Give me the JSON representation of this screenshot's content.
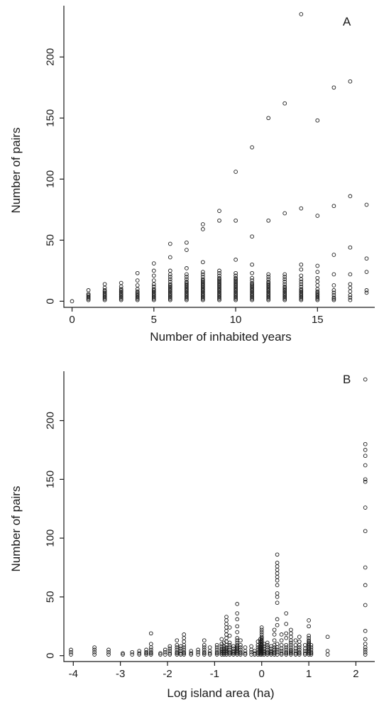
{
  "chart_data": [
    {
      "type": "scatter",
      "panel_label": "A",
      "xlabel": "Number of inhabited years",
      "ylabel": "Number of pairs",
      "xlim": [
        -0.5,
        18.5
      ],
      "ylim": [
        -5,
        242
      ],
      "xticks": [
        0,
        5,
        10,
        15
      ],
      "yticks": [
        0,
        50,
        100,
        150,
        200
      ],
      "grid": false,
      "legend": "none",
      "columns": [
        {
          "x": 0,
          "ys": [
            0
          ]
        },
        {
          "x": 1,
          "ys": [
            1,
            2,
            3,
            4,
            5,
            6,
            9
          ]
        },
        {
          "x": 2,
          "ys": [
            1,
            2,
            3,
            4,
            5,
            6,
            7,
            8,
            9,
            11,
            14
          ]
        },
        {
          "x": 3,
          "ys": [
            1,
            2,
            3,
            4,
            5,
            6,
            7,
            8,
            9,
            10,
            12,
            15
          ]
        },
        {
          "x": 4,
          "ys": [
            1,
            2,
            3,
            4,
            5,
            6,
            7,
            8,
            10,
            13,
            17,
            23
          ]
        },
        {
          "x": 5,
          "ys": [
            1,
            2,
            3,
            4,
            5,
            6,
            7,
            8,
            9,
            10,
            12,
            14,
            17,
            21,
            25,
            31
          ]
        },
        {
          "x": 6,
          "ys": [
            1,
            2,
            3,
            4,
            5,
            6,
            7,
            8,
            9,
            10,
            11,
            12,
            13,
            14,
            16,
            18,
            20,
            22,
            25,
            36,
            47
          ]
        },
        {
          "x": 7,
          "ys": [
            1,
            2,
            3,
            4,
            5,
            6,
            7,
            8,
            9,
            10,
            11,
            12,
            13,
            14,
            15,
            16,
            18,
            20,
            22,
            27,
            42,
            48
          ]
        },
        {
          "x": 8,
          "ys": [
            1,
            2,
            3,
            4,
            5,
            6,
            7,
            8,
            9,
            10,
            11,
            12,
            13,
            14,
            15,
            16,
            17,
            18,
            20,
            22,
            24,
            32,
            59,
            63
          ]
        },
        {
          "x": 9,
          "ys": [
            1,
            2,
            3,
            4,
            5,
            6,
            7,
            8,
            9,
            10,
            11,
            12,
            13,
            14,
            15,
            16,
            17,
            18,
            19,
            21,
            23,
            25,
            66,
            74
          ]
        },
        {
          "x": 10,
          "ys": [
            1,
            2,
            3,
            4,
            5,
            6,
            7,
            8,
            9,
            10,
            11,
            12,
            13,
            14,
            15,
            16,
            17,
            18,
            19,
            21,
            23,
            34,
            66,
            106
          ]
        },
        {
          "x": 11,
          "ys": [
            1,
            2,
            3,
            4,
            5,
            6,
            7,
            8,
            9,
            10,
            11,
            12,
            13,
            14,
            15,
            17,
            19,
            23,
            30,
            53,
            126
          ]
        },
        {
          "x": 12,
          "ys": [
            1,
            2,
            3,
            4,
            5,
            6,
            7,
            8,
            9,
            10,
            11,
            12,
            13,
            14,
            15,
            16,
            18,
            20,
            22,
            66,
            150
          ]
        },
        {
          "x": 13,
          "ys": [
            1,
            2,
            3,
            4,
            5,
            6,
            7,
            8,
            9,
            10,
            11,
            12,
            14,
            16,
            18,
            20,
            22,
            72,
            162
          ]
        },
        {
          "x": 14,
          "ys": [
            1,
            2,
            3,
            4,
            5,
            6,
            7,
            8,
            9,
            10,
            12,
            14,
            16,
            18,
            21,
            26,
            30,
            76,
            235
          ]
        },
        {
          "x": 15,
          "ys": [
            1,
            2,
            3,
            4,
            5,
            6,
            7,
            8,
            10,
            13,
            16,
            19,
            24,
            29,
            70,
            148
          ]
        },
        {
          "x": 16,
          "ys": [
            1,
            2,
            3,
            5,
            7,
            9,
            13,
            22,
            38,
            78,
            175
          ]
        },
        {
          "x": 17,
          "ys": [
            1,
            3,
            5,
            8,
            11,
            14,
            22,
            44,
            86,
            180
          ]
        },
        {
          "x": 18,
          "ys": [
            7,
            9,
            24,
            35,
            79
          ]
        }
      ]
    },
    {
      "type": "scatter",
      "panel_label": "B",
      "xlabel": "Log island area (ha)",
      "ylabel": "Number of pairs",
      "xlim": [
        -4.2,
        2.4
      ],
      "ylim": [
        -5,
        242
      ],
      "xticks": [
        -4,
        -3,
        -2,
        -1,
        0,
        1,
        2
      ],
      "yticks": [
        0,
        50,
        100,
        150,
        200
      ],
      "grid": false,
      "legend": "none",
      "columns": [
        {
          "x": -4.05,
          "ys": [
            1,
            3,
            5
          ]
        },
        {
          "x": -3.55,
          "ys": [
            1,
            3,
            5,
            7
          ]
        },
        {
          "x": -3.25,
          "ys": [
            1,
            3,
            5
          ]
        },
        {
          "x": -2.95,
          "ys": [
            1,
            2
          ]
        },
        {
          "x": -2.75,
          "ys": [
            1,
            3
          ]
        },
        {
          "x": -2.6,
          "ys": [
            1,
            2,
            4
          ]
        },
        {
          "x": -2.45,
          "ys": [
            1,
            2,
            3,
            5
          ]
        },
        {
          "x": -2.35,
          "ys": [
            1,
            2,
            3,
            5,
            7,
            10,
            19
          ]
        },
        {
          "x": -2.15,
          "ys": [
            1,
            2
          ]
        },
        {
          "x": -2.05,
          "ys": [
            1,
            3,
            5
          ]
        },
        {
          "x": -1.95,
          "ys": [
            1,
            2,
            4,
            6,
            8
          ]
        },
        {
          "x": -1.8,
          "ys": [
            1,
            2,
            3,
            5,
            7,
            9,
            13
          ]
        },
        {
          "x": -1.72,
          "ys": [
            1,
            2,
            4,
            6,
            8
          ]
        },
        {
          "x": -1.65,
          "ys": [
            1,
            2,
            3,
            5,
            7,
            9,
            12,
            15,
            18
          ]
        },
        {
          "x": -1.5,
          "ys": [
            1,
            2,
            4
          ]
        },
        {
          "x": -1.35,
          "ys": [
            1,
            3,
            5
          ]
        },
        {
          "x": -1.22,
          "ys": [
            1,
            2,
            3,
            5,
            7,
            9,
            13
          ]
        },
        {
          "x": -1.1,
          "ys": [
            1,
            2,
            4,
            7
          ]
        },
        {
          "x": -0.95,
          "ys": [
            1,
            2,
            3,
            5,
            7,
            9
          ]
        },
        {
          "x": -0.85,
          "ys": [
            1,
            2,
            3,
            4,
            5,
            6,
            8,
            10,
            14
          ]
        },
        {
          "x": -0.8,
          "ys": [
            1,
            2,
            3,
            4,
            6,
            8,
            11
          ]
        },
        {
          "x": -0.75,
          "ys": [
            1,
            2,
            3,
            4,
            5,
            6,
            7,
            9,
            12,
            15,
            18,
            21,
            24,
            27,
            30,
            33
          ]
        },
        {
          "x": -0.68,
          "ys": [
            1,
            2,
            3,
            5,
            7,
            9,
            11,
            17,
            24
          ]
        },
        {
          "x": -0.6,
          "ys": [
            1,
            2,
            3,
            4,
            6,
            8
          ]
        },
        {
          "x": -0.52,
          "ys": [
            1,
            2,
            3,
            4,
            5,
            6,
            7,
            8,
            9,
            11,
            13,
            15,
            20,
            25,
            31,
            36,
            44
          ]
        },
        {
          "x": -0.45,
          "ys": [
            1,
            2,
            3,
            5,
            7,
            9,
            13
          ]
        },
        {
          "x": -0.35,
          "ys": [
            1,
            2,
            4,
            7
          ]
        },
        {
          "x": -0.22,
          "ys": [
            1,
            3,
            5,
            8
          ]
        },
        {
          "x": -0.15,
          "ys": [
            1,
            2,
            4
          ]
        },
        {
          "x": -0.08,
          "ys": [
            1,
            2,
            3,
            5,
            7,
            9,
            12
          ]
        },
        {
          "x": -0.03,
          "ys": [
            1,
            2,
            3,
            4,
            5,
            6,
            7,
            8,
            10,
            12,
            14
          ]
        },
        {
          "x": 0.0,
          "ys": [
            1,
            2,
            3,
            4,
            5,
            6,
            7,
            8,
            9,
            10,
            11,
            12,
            13,
            14,
            15,
            16,
            18,
            20,
            22,
            24
          ]
        },
        {
          "x": 0.05,
          "ys": [
            1,
            2,
            3,
            4,
            6,
            8,
            10
          ]
        },
        {
          "x": 0.12,
          "ys": [
            1,
            2,
            3,
            5,
            7,
            9,
            11
          ]
        },
        {
          "x": 0.2,
          "ys": [
            1,
            2,
            3,
            4,
            6,
            8
          ]
        },
        {
          "x": 0.27,
          "ys": [
            1,
            2,
            3,
            5,
            7,
            9,
            13,
            18,
            22
          ]
        },
        {
          "x": 0.33,
          "ys": [
            1,
            3,
            5,
            7,
            10,
            26,
            31,
            45,
            50,
            53,
            60,
            64,
            67,
            70,
            73,
            76,
            79,
            86
          ]
        },
        {
          "x": 0.42,
          "ys": [
            1,
            2,
            4,
            6,
            9,
            13,
            18
          ]
        },
        {
          "x": 0.52,
          "ys": [
            1,
            2,
            3,
            5,
            7,
            9,
            15,
            19,
            27,
            36
          ]
        },
        {
          "x": 0.62,
          "ys": [
            1,
            2,
            3,
            4,
            5,
            7,
            9,
            11,
            13,
            16,
            19,
            22
          ]
        },
        {
          "x": 0.72,
          "ys": [
            1,
            2,
            4,
            6,
            9,
            13
          ]
        },
        {
          "x": 0.8,
          "ys": [
            1,
            2,
            3,
            5,
            7,
            9,
            12,
            16
          ]
        },
        {
          "x": 0.92,
          "ys": [
            1,
            2,
            4,
            6,
            9
          ]
        },
        {
          "x": 1.0,
          "ys": [
            1,
            2,
            3,
            4,
            5,
            6,
            7,
            8,
            9,
            10,
            11,
            12,
            13,
            15,
            17,
            25,
            30
          ]
        },
        {
          "x": 1.05,
          "ys": [
            1,
            2,
            3,
            5,
            7,
            9
          ]
        },
        {
          "x": 1.4,
          "ys": [
            1,
            4,
            16
          ]
        },
        {
          "x": 2.2,
          "ys": [
            1,
            3,
            5,
            7,
            10,
            14,
            21,
            43,
            60,
            75,
            106,
            126,
            148,
            150,
            162,
            170,
            175,
            180,
            235
          ]
        }
      ]
    }
  ]
}
